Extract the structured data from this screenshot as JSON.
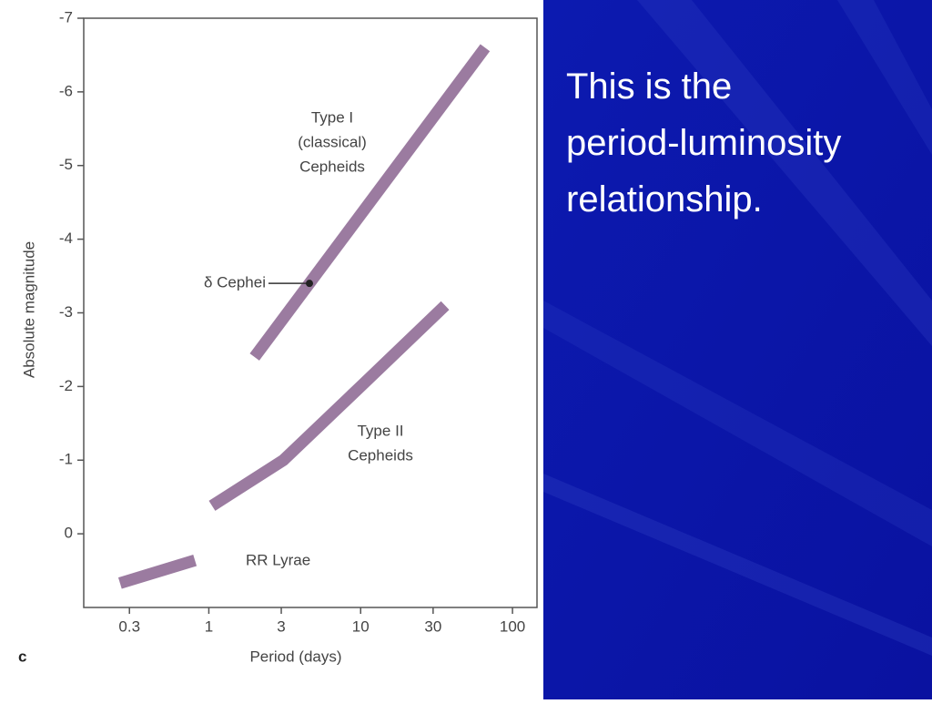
{
  "chart_data": {
    "type": "line",
    "x_label": "Period (days)",
    "y_label": "Absolute magnitude",
    "panel_label": "c",
    "xlog": true,
    "xlim": [
      0.15,
      145
    ],
    "xticks": [
      0.3,
      1,
      3,
      10,
      30,
      100
    ],
    "ylim": [
      1,
      -7
    ],
    "yticks": [
      0,
      -1,
      -2,
      -3,
      -4,
      -5,
      -6,
      -7
    ],
    "series": [
      {
        "label_lines": [
          "Type I",
          "(classical)",
          "Cepheids"
        ],
        "color": "#9b7ba0",
        "x": [
          2,
          66
        ],
        "values": [
          -2.4,
          -6.6
        ]
      },
      {
        "label_lines": [
          "Type II",
          "Cepheids"
        ],
        "color": "#9b7ba0",
        "x": [
          1.05,
          3.1,
          10.6,
          36
        ],
        "values": [
          -0.38,
          -1.0,
          -2.05,
          -3.1
        ]
      },
      {
        "label_lines": [
          "RR Lyrae"
        ],
        "color": "#9b7ba0",
        "x": [
          0.26,
          0.81
        ],
        "values": [
          0.67,
          0.36
        ]
      }
    ],
    "point": {
      "label": "δ Cephei",
      "x": 4.6,
      "y": -3.4
    }
  },
  "slide_text": [
    "This is the",
    "period-luminosity",
    "relationship."
  ]
}
